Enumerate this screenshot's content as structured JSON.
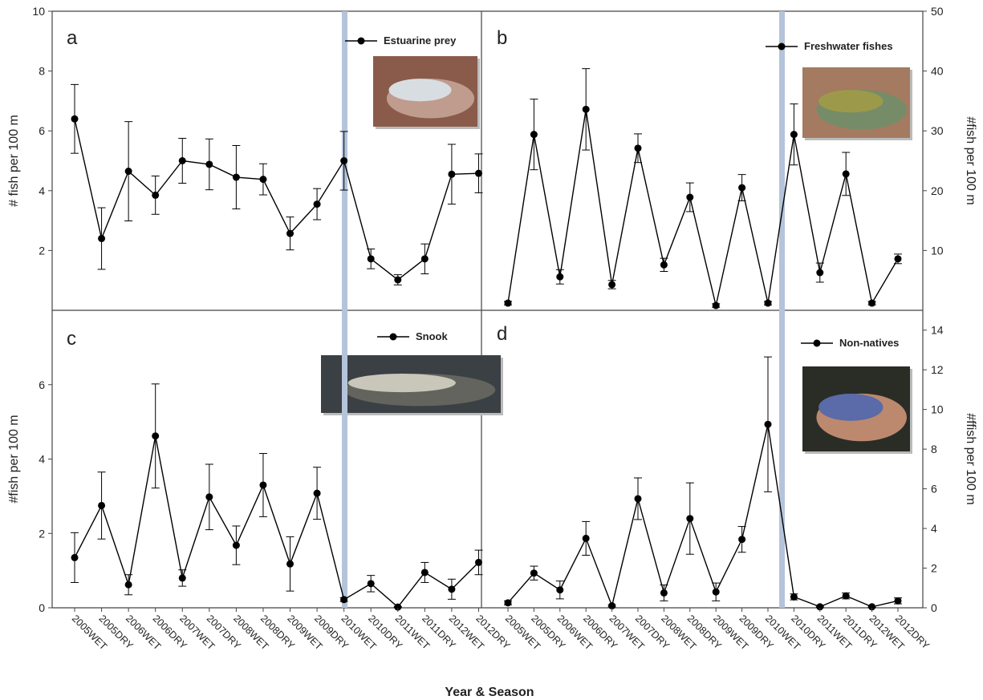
{
  "figure": {
    "x_axis_title": "Year & Season",
    "categories": [
      "2005WET",
      "2005DRY",
      "2006WET",
      "2006DRY",
      "2007WET",
      "2007DRY",
      "2008WET",
      "2008DRY",
      "2009WET",
      "2009DRY",
      "2010WET",
      "2010DRY",
      "2011WET",
      "2011DRY",
      "2012WET",
      "2012DRY"
    ],
    "event_line_color": "#b4c4da",
    "line_color": "#000000"
  },
  "chart_data": [
    {
      "type": "line",
      "panel": "a",
      "series": [
        {
          "name": "Estuarine prey",
          "values": [
            6.4,
            2.4,
            4.65,
            3.85,
            5.0,
            4.88,
            4.45,
            4.38,
            2.57,
            3.55,
            5.0,
            1.72,
            1.02,
            1.72,
            4.55,
            4.58
          ],
          "error": [
            1.15,
            1.03,
            1.66,
            0.64,
            0.75,
            0.85,
            1.06,
            0.52,
            0.55,
            0.52,
            0.98,
            0.33,
            0.17,
            0.5,
            1.0,
            0.65
          ]
        }
      ],
      "y_axis": "left",
      "ylabel": "# fish per 100 m",
      "ylim": [
        0,
        10
      ],
      "yticks": [
        2,
        4,
        6,
        8,
        10
      ],
      "photo": "silver estuarine fish held in hand"
    },
    {
      "type": "line",
      "panel": "b",
      "series": [
        {
          "name": "Freshwater fishes",
          "values": [
            1.2,
            29.4,
            5.6,
            33.6,
            4.3,
            27.1,
            7.6,
            18.9,
            0.8,
            20.5,
            1.2,
            29.4,
            6.3,
            22.8,
            1.2,
            8.6
          ],
          "error": [
            0.3,
            5.9,
            1.2,
            6.8,
            0.7,
            2.4,
            1.1,
            2.4,
            0.3,
            2.2,
            0.3,
            5.1,
            1.6,
            3.6,
            0.3,
            0.8
          ]
        }
      ],
      "y_axis": "right",
      "ylabel": "#fish per 100 m",
      "ylim": [
        0,
        50
      ],
      "yticks": [
        10,
        20,
        30,
        40,
        50
      ],
      "photo": "small bass held in hand"
    },
    {
      "type": "line",
      "panel": "c",
      "series": [
        {
          "name": "Snook",
          "values": [
            1.35,
            2.75,
            0.62,
            4.62,
            0.8,
            2.98,
            1.68,
            3.3,
            1.18,
            3.08,
            0.22,
            0.65,
            0.02,
            0.95,
            0.5,
            1.22
          ],
          "error": [
            0.67,
            0.9,
            0.27,
            1.4,
            0.22,
            0.88,
            0.52,
            0.85,
            0.73,
            0.7,
            0.05,
            0.22,
            0.01,
            0.27,
            0.27,
            0.33
          ]
        }
      ],
      "y_axis": "left",
      "ylabel": "#fish per 100 m",
      "ylim": [
        0,
        8
      ],
      "yticks": [
        0,
        2,
        4,
        6
      ],
      "photo": "snook held over water"
    },
    {
      "type": "line",
      "panel": "d",
      "series": [
        {
          "name": "Non-natives",
          "values": [
            0.25,
            1.75,
            0.9,
            3.5,
            0.1,
            5.5,
            0.75,
            4.5,
            0.8,
            3.45,
            9.25,
            0.55,
            0.05,
            0.6,
            0.05,
            0.35
          ],
          "error": [
            0.1,
            0.35,
            0.45,
            0.85,
            0.05,
            1.05,
            0.4,
            1.8,
            0.45,
            0.65,
            3.4,
            0.15,
            0.03,
            0.15,
            0.03,
            0.15
          ]
        }
      ],
      "y_axis": "right",
      "ylabel": "#ffish per 100 m",
      "ylim": [
        0,
        15
      ],
      "yticks": [
        0,
        2,
        4,
        6,
        8,
        10,
        12,
        14
      ],
      "photo": "cichlid held in hand"
    }
  ]
}
